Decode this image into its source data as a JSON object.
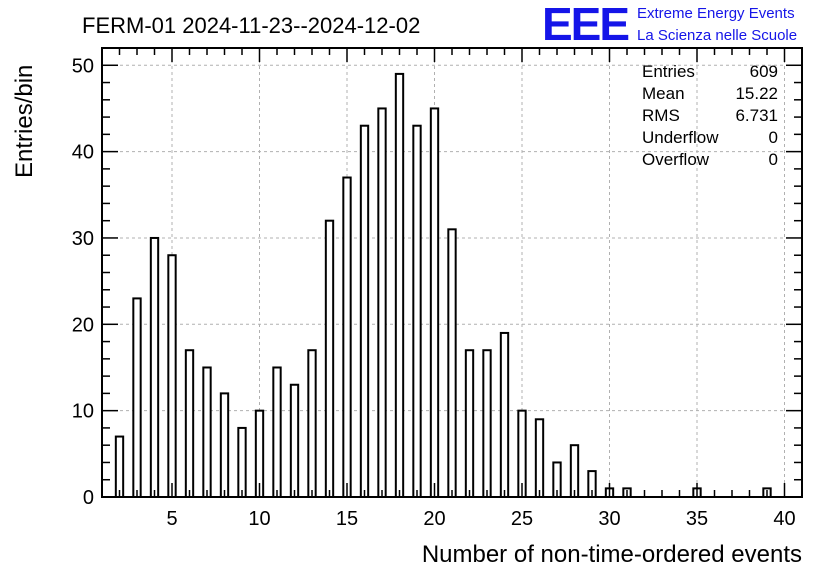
{
  "chart_data": {
    "type": "bar",
    "title": "FERM-01 2024-11-23--2024-12-02",
    "xlabel": "Number of non-time-ordered events",
    "ylabel": "Entries/bin",
    "xlim": [
      1,
      41
    ],
    "ylim": [
      0,
      52
    ],
    "x_ticks": [
      5,
      10,
      15,
      20,
      25,
      30,
      35,
      40
    ],
    "y_ticks": [
      0,
      10,
      20,
      30,
      40,
      50
    ],
    "grid": true,
    "bins": [
      {
        "x": 2,
        "value": 7
      },
      {
        "x": 3,
        "value": 23
      },
      {
        "x": 4,
        "value": 30
      },
      {
        "x": 5,
        "value": 28
      },
      {
        "x": 6,
        "value": 17
      },
      {
        "x": 7,
        "value": 15
      },
      {
        "x": 8,
        "value": 12
      },
      {
        "x": 9,
        "value": 8
      },
      {
        "x": 10,
        "value": 10
      },
      {
        "x": 11,
        "value": 15
      },
      {
        "x": 12,
        "value": 13
      },
      {
        "x": 13,
        "value": 17
      },
      {
        "x": 14,
        "value": 32
      },
      {
        "x": 15,
        "value": 37
      },
      {
        "x": 16,
        "value": 43
      },
      {
        "x": 17,
        "value": 45
      },
      {
        "x": 18,
        "value": 49
      },
      {
        "x": 19,
        "value": 43
      },
      {
        "x": 20,
        "value": 45
      },
      {
        "x": 21,
        "value": 31
      },
      {
        "x": 22,
        "value": 17
      },
      {
        "x": 23,
        "value": 17
      },
      {
        "x": 24,
        "value": 19
      },
      {
        "x": 25,
        "value": 10
      },
      {
        "x": 26,
        "value": 9
      },
      {
        "x": 27,
        "value": 4
      },
      {
        "x": 28,
        "value": 6
      },
      {
        "x": 29,
        "value": 3
      },
      {
        "x": 30,
        "value": 1
      },
      {
        "x": 31,
        "value": 1
      },
      {
        "x": 35,
        "value": 1
      },
      {
        "x": 39,
        "value": 1
      }
    ],
    "stats": [
      {
        "label": "Entries",
        "value": "609"
      },
      {
        "label": "Mean",
        "value": "15.22"
      },
      {
        "label": "RMS",
        "value": "6.731"
      },
      {
        "label": "Underflow",
        "value": "0"
      },
      {
        "label": "Overflow",
        "value": "0"
      }
    ],
    "stats_position": "top-right"
  },
  "logo": {
    "mark": "EEE",
    "line1": "Extreme Energy Events",
    "line2": "La Scienza nelle Scuole",
    "color": "#1515e8"
  }
}
